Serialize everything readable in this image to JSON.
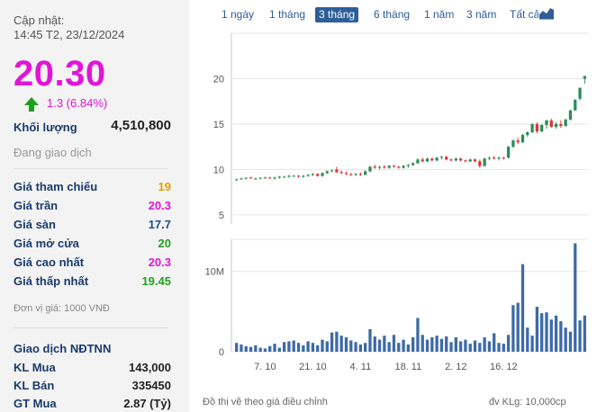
{
  "summary": {
    "update_label": "Cập nhật:",
    "update_time": "14:45 T2, 23/12/2024",
    "price": "20.30",
    "change": "1.3 (6.84%)",
    "volume_label": "Khối lượng",
    "volume_value": "4,510,800",
    "status": "Đang giao dịch"
  },
  "prices": [
    {
      "label": "Giá tham chiếu",
      "value": "19",
      "color": "#e0a000"
    },
    {
      "label": "Giá trần",
      "value": "20.3",
      "color": "#e015d6"
    },
    {
      "label": "Giá sàn",
      "value": "17.7",
      "color": "#1a4f8f"
    },
    {
      "label": "Giá mở cửa",
      "value": "20",
      "color": "#22a022"
    },
    {
      "label": "Giá cao nhất",
      "value": "20.3",
      "color": "#e015d6"
    },
    {
      "label": "Giá thấp nhất",
      "value": "19.45",
      "color": "#22a022"
    }
  ],
  "unit_note": "Đơn vị giá: 1000 VNĐ",
  "foreign": {
    "title": "Giao dịch NĐTNN",
    "rows": [
      {
        "label": "KL Mua",
        "value": "143,000"
      },
      {
        "label": "KL Bán",
        "value": "335450"
      },
      {
        "label": "GT Mua",
        "value": "2.87 (Tỷ)"
      }
    ]
  },
  "tabs": [
    "1 ngày",
    "1 tháng",
    "3 tháng",
    "6 tháng",
    "1 năm",
    "3 năm",
    "Tất cả"
  ],
  "active_tab": "3 tháng",
  "footer": {
    "left": "Đồ thị vẽ theo giá điều chỉnh",
    "right": "đv KLg: 10,000cp"
  },
  "chart_data": {
    "type": "candlestick",
    "price_axis": {
      "ticks": [
        "5",
        "10",
        "15",
        "20"
      ],
      "range": [
        4,
        25
      ]
    },
    "volume_axis": {
      "ticks": [
        "0",
        "10M"
      ],
      "range": [
        0,
        14000000
      ]
    },
    "x_tick_labels": [
      "7. 10",
      "21. 10",
      "4. 11",
      "18. 11",
      "2. 12",
      "16. 12"
    ],
    "up_color": "#2e8b57",
    "down_color": "#d9383a",
    "candles": [
      {
        "o": 8.9,
        "h": 9.0,
        "l": 8.8,
        "c": 8.9,
        "v": 1100000
      },
      {
        "o": 8.9,
        "h": 9.1,
        "l": 8.9,
        "c": 9.0,
        "v": 900000
      },
      {
        "o": 9.0,
        "h": 9.1,
        "l": 8.9,
        "c": 9.1,
        "v": 700000
      },
      {
        "o": 9.1,
        "h": 9.2,
        "l": 9.0,
        "c": 9.0,
        "v": 600000
      },
      {
        "o": 9.0,
        "h": 9.1,
        "l": 8.9,
        "c": 9.0,
        "v": 800000
      },
      {
        "o": 9.0,
        "h": 9.1,
        "l": 8.9,
        "c": 9.1,
        "v": 500000
      },
      {
        "o": 9.1,
        "h": 9.2,
        "l": 9.0,
        "c": 9.1,
        "v": 400000
      },
      {
        "o": 9.1,
        "h": 9.2,
        "l": 9.0,
        "c": 9.0,
        "v": 700000
      },
      {
        "o": 9.0,
        "h": 9.2,
        "l": 8.9,
        "c": 9.1,
        "v": 1000000
      },
      {
        "o": 9.1,
        "h": 9.3,
        "l": 9.0,
        "c": 9.2,
        "v": 500000
      },
      {
        "o": 9.2,
        "h": 9.3,
        "l": 9.1,
        "c": 9.2,
        "v": 1200000
      },
      {
        "o": 9.2,
        "h": 9.4,
        "l": 9.1,
        "c": 9.3,
        "v": 1300000
      },
      {
        "o": 9.3,
        "h": 9.4,
        "l": 9.2,
        "c": 9.3,
        "v": 1400000
      },
      {
        "o": 9.3,
        "h": 9.4,
        "l": 9.1,
        "c": 9.2,
        "v": 1100000
      },
      {
        "o": 9.2,
        "h": 9.4,
        "l": 9.1,
        "c": 9.3,
        "v": 800000
      },
      {
        "o": 9.3,
        "h": 9.5,
        "l": 9.2,
        "c": 9.4,
        "v": 1300000
      },
      {
        "o": 9.4,
        "h": 9.6,
        "l": 9.3,
        "c": 9.5,
        "v": 1100000
      },
      {
        "o": 9.5,
        "h": 9.6,
        "l": 9.2,
        "c": 9.3,
        "v": 800000
      },
      {
        "o": 9.3,
        "h": 9.7,
        "l": 9.2,
        "c": 9.6,
        "v": 1500000
      },
      {
        "o": 9.6,
        "h": 9.9,
        "l": 9.5,
        "c": 9.8,
        "v": 1300000
      },
      {
        "o": 9.8,
        "h": 10.0,
        "l": 9.7,
        "c": 9.9,
        "v": 2400000
      },
      {
        "o": 10.0,
        "h": 10.3,
        "l": 9.6,
        "c": 9.7,
        "v": 2500000
      },
      {
        "o": 9.7,
        "h": 9.9,
        "l": 9.5,
        "c": 9.6,
        "v": 2000000
      },
      {
        "o": 9.6,
        "h": 9.8,
        "l": 9.4,
        "c": 9.5,
        "v": 1800000
      },
      {
        "o": 9.5,
        "h": 9.6,
        "l": 9.3,
        "c": 9.4,
        "v": 1400000
      },
      {
        "o": 9.4,
        "h": 9.6,
        "l": 9.3,
        "c": 9.5,
        "v": 1200000
      },
      {
        "o": 9.5,
        "h": 9.7,
        "l": 9.3,
        "c": 9.4,
        "v": 900000
      },
      {
        "o": 9.4,
        "h": 9.9,
        "l": 9.4,
        "c": 9.8,
        "v": 1100000
      },
      {
        "o": 9.8,
        "h": 10.4,
        "l": 9.7,
        "c": 10.3,
        "v": 2800000
      },
      {
        "o": 10.3,
        "h": 10.5,
        "l": 10.1,
        "c": 10.2,
        "v": 1900000
      },
      {
        "o": 10.2,
        "h": 10.4,
        "l": 10.0,
        "c": 10.3,
        "v": 1500000
      },
      {
        "o": 10.3,
        "h": 10.5,
        "l": 10.1,
        "c": 10.2,
        "v": 2000000
      },
      {
        "o": 10.2,
        "h": 10.5,
        "l": 10.1,
        "c": 10.4,
        "v": 1200000
      },
      {
        "o": 10.4,
        "h": 10.5,
        "l": 10.2,
        "c": 10.3,
        "v": 2100000
      },
      {
        "o": 10.3,
        "h": 10.4,
        "l": 10.1,
        "c": 10.2,
        "v": 1100000
      },
      {
        "o": 10.2,
        "h": 10.5,
        "l": 10.1,
        "c": 10.4,
        "v": 1500000
      },
      {
        "o": 10.4,
        "h": 10.6,
        "l": 10.2,
        "c": 10.5,
        "v": 900000
      },
      {
        "o": 10.5,
        "h": 10.8,
        "l": 10.4,
        "c": 10.7,
        "v": 1800000
      },
      {
        "o": 10.7,
        "h": 11.2,
        "l": 10.6,
        "c": 11.1,
        "v": 4200000
      },
      {
        "o": 11.1,
        "h": 11.3,
        "l": 10.8,
        "c": 10.9,
        "v": 2100000
      },
      {
        "o": 10.9,
        "h": 11.3,
        "l": 10.8,
        "c": 11.2,
        "v": 1500000
      },
      {
        "o": 11.2,
        "h": 11.3,
        "l": 10.9,
        "c": 11.0,
        "v": 1800000
      },
      {
        "o": 11.0,
        "h": 11.4,
        "l": 10.9,
        "c": 11.3,
        "v": 2000000
      },
      {
        "o": 11.3,
        "h": 11.5,
        "l": 11.1,
        "c": 11.4,
        "v": 1600000
      },
      {
        "o": 11.4,
        "h": 11.5,
        "l": 11.0,
        "c": 11.1,
        "v": 1900000
      },
      {
        "o": 11.1,
        "h": 11.2,
        "l": 10.9,
        "c": 11.0,
        "v": 1200000
      },
      {
        "o": 11.0,
        "h": 11.3,
        "l": 10.9,
        "c": 11.2,
        "v": 1800000
      },
      {
        "o": 11.2,
        "h": 11.3,
        "l": 10.9,
        "c": 11.0,
        "v": 1300000
      },
      {
        "o": 11.0,
        "h": 11.1,
        "l": 10.8,
        "c": 10.9,
        "v": 1500000
      },
      {
        "o": 10.9,
        "h": 11.2,
        "l": 10.8,
        "c": 11.1,
        "v": 1000000
      },
      {
        "o": 11.1,
        "h": 11.2,
        "l": 10.8,
        "c": 10.9,
        "v": 1400000
      },
      {
        "o": 10.9,
        "h": 11.1,
        "l": 10.2,
        "c": 10.4,
        "v": 1100000
      },
      {
        "o": 10.4,
        "h": 11.3,
        "l": 10.3,
        "c": 11.2,
        "v": 1800000
      },
      {
        "o": 11.2,
        "h": 11.4,
        "l": 11.0,
        "c": 11.3,
        "v": 1300000
      },
      {
        "o": 11.3,
        "h": 11.5,
        "l": 11.1,
        "c": 11.2,
        "v": 2300000
      },
      {
        "o": 11.2,
        "h": 11.4,
        "l": 11.0,
        "c": 11.3,
        "v": 1100000
      },
      {
        "o": 11.3,
        "h": 11.4,
        "l": 11.1,
        "c": 11.2,
        "v": 1000000
      },
      {
        "o": 11.3,
        "h": 12.6,
        "l": 11.2,
        "c": 12.5,
        "v": 2100000
      },
      {
        "o": 12.5,
        "h": 13.3,
        "l": 12.4,
        "c": 13.2,
        "v": 5800000
      },
      {
        "o": 13.2,
        "h": 13.5,
        "l": 12.8,
        "c": 13.0,
        "v": 6100000
      },
      {
        "o": 13.0,
        "h": 13.9,
        "l": 12.9,
        "c": 13.8,
        "v": 10900000
      },
      {
        "o": 13.8,
        "h": 14.2,
        "l": 13.6,
        "c": 14.1,
        "v": 3000000
      },
      {
        "o": 14.1,
        "h": 15.1,
        "l": 14.0,
        "c": 15.0,
        "v": 2000000
      },
      {
        "o": 15.0,
        "h": 15.2,
        "l": 14.0,
        "c": 14.2,
        "v": 5600000
      },
      {
        "o": 14.2,
        "h": 15.0,
        "l": 14.1,
        "c": 14.9,
        "v": 4800000
      },
      {
        "o": 14.9,
        "h": 15.5,
        "l": 14.5,
        "c": 15.4,
        "v": 4900000
      },
      {
        "o": 15.4,
        "h": 15.6,
        "l": 14.6,
        "c": 14.7,
        "v": 4000000
      },
      {
        "o": 14.7,
        "h": 15.2,
        "l": 14.5,
        "c": 15.0,
        "v": 4500000
      },
      {
        "o": 15.0,
        "h": 15.4,
        "l": 14.6,
        "c": 14.8,
        "v": 3800000
      },
      {
        "o": 14.8,
        "h": 15.6,
        "l": 14.7,
        "c": 15.5,
        "v": 3000000
      },
      {
        "o": 15.5,
        "h": 16.6,
        "l": 15.4,
        "c": 16.5,
        "v": 2500000
      },
      {
        "o": 16.5,
        "h": 17.7,
        "l": 16.5,
        "c": 17.7,
        "v": 13500000
      },
      {
        "o": 17.8,
        "h": 19.0,
        "l": 17.6,
        "c": 19.0,
        "v": 3900000
      },
      {
        "o": 20.0,
        "h": 20.3,
        "l": 19.45,
        "c": 20.3,
        "v": 4510800
      }
    ]
  }
}
